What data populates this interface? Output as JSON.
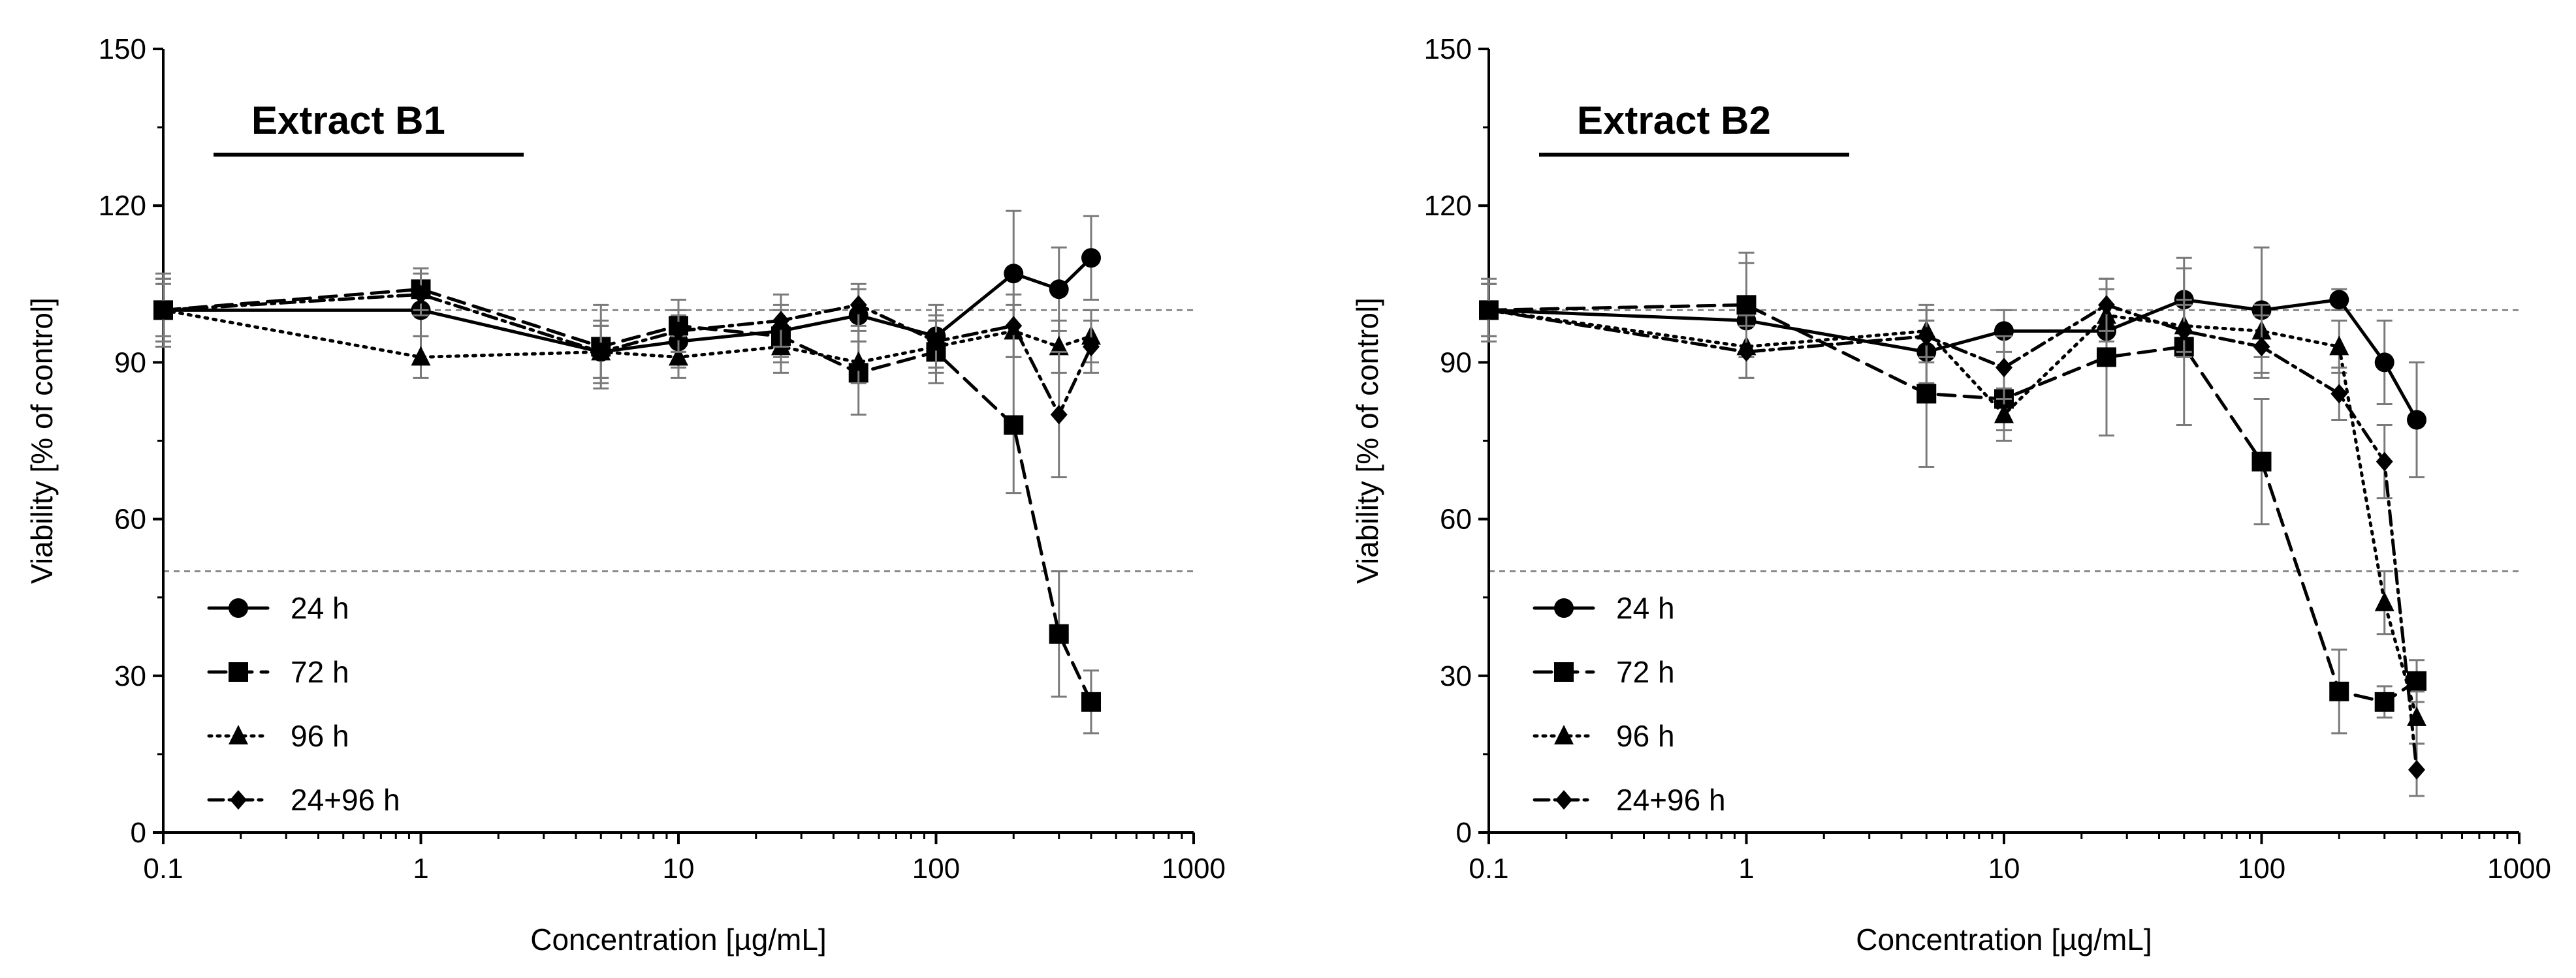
{
  "chart_data": [
    {
      "type": "line",
      "panel_id": "b1",
      "title": "Extract B1",
      "xlabel": "Concentration [µg/mL]",
      "ylabel": "Viability [% of control]",
      "xscale": "log",
      "xlim": [
        0.1,
        1000
      ],
      "ylim": [
        0,
        150
      ],
      "xticks": [
        0.1,
        1,
        10,
        100,
        1000
      ],
      "xtick_labels": [
        "0.1",
        "1",
        "10",
        "100",
        "1000"
      ],
      "yticks": [
        0,
        30,
        60,
        90,
        120,
        150
      ],
      "ytick_labels": [
        "0",
        "30",
        "60",
        "90",
        "120",
        "150"
      ],
      "reference_lines": [
        100,
        50
      ],
      "legend_position": "bottom-left",
      "series": [
        {
          "name": "24 h",
          "marker": "circle",
          "dash": "solid",
          "x": [
            0.1,
            1,
            5,
            10,
            25,
            50,
            100,
            200,
            300,
            400
          ],
          "y": [
            100,
            100,
            92,
            94,
            96,
            99,
            95,
            107,
            104,
            110
          ],
          "err": [
            6,
            5,
            6,
            5,
            5,
            5,
            6,
            12,
            8,
            8
          ]
        },
        {
          "name": "72 h",
          "marker": "square",
          "dash": "dashed",
          "x": [
            0.1,
            1,
            5,
            10,
            25,
            50,
            100,
            200,
            300,
            400
          ],
          "y": [
            100,
            104,
            93,
            97,
            95,
            88,
            92,
            78,
            38,
            25
          ],
          "err": [
            7,
            4,
            8,
            5,
            5,
            8,
            6,
            13,
            12,
            6
          ]
        },
        {
          "name": "96 h",
          "marker": "triangle",
          "dash": "dotted",
          "x": [
            0.1,
            1,
            5,
            10,
            25,
            50,
            100,
            200,
            300,
            400
          ],
          "y": [
            100,
            91,
            92,
            91,
            93,
            90,
            93,
            96,
            93,
            95
          ],
          "err": [
            5,
            4,
            5,
            4,
            5,
            4,
            5,
            5,
            5,
            5
          ]
        },
        {
          "name": "24+96 h",
          "marker": "diamond",
          "dash": "dashdot",
          "x": [
            0.1,
            1,
            5,
            10,
            25,
            50,
            100,
            200,
            300,
            400
          ],
          "y": [
            100,
            103,
            92,
            96,
            98,
            101,
            94,
            97,
            80,
            93
          ],
          "err": [
            6,
            4,
            5,
            4,
            5,
            4,
            5,
            6,
            12,
            5
          ]
        }
      ]
    },
    {
      "type": "line",
      "panel_id": "b2",
      "title": "Extract B2",
      "xlabel": "Concentration [µg/mL]",
      "ylabel": "Viability [% of control]",
      "xscale": "log",
      "xlim": [
        0.1,
        1000
      ],
      "ylim": [
        0,
        150
      ],
      "xticks": [
        0.1,
        1,
        10,
        100,
        1000
      ],
      "xtick_labels": [
        "0.1",
        "1",
        "10",
        "100",
        "1000"
      ],
      "yticks": [
        0,
        30,
        60,
        90,
        120,
        150
      ],
      "ytick_labels": [
        "0",
        "30",
        "60",
        "90",
        "120",
        "150"
      ],
      "reference_lines": [
        100,
        50
      ],
      "legend_position": "bottom-left",
      "series": [
        {
          "name": "24 h",
          "marker": "circle",
          "dash": "solid",
          "x": [
            0.1,
            1,
            5,
            10,
            25,
            50,
            100,
            200,
            300,
            400
          ],
          "y": [
            100,
            98,
            92,
            96,
            96,
            102,
            100,
            102,
            90,
            79
          ],
          "err": [
            5,
            11,
            6,
            4,
            5,
            8,
            12,
            2,
            8,
            11
          ]
        },
        {
          "name": "72 h",
          "marker": "square",
          "dash": "dashed",
          "x": [
            0.1,
            1,
            5,
            10,
            25,
            50,
            100,
            200,
            300,
            400
          ],
          "y": [
            100,
            101,
            84,
            83,
            91,
            93,
            71,
            27,
            25,
            29
          ],
          "err": [
            6,
            10,
            14,
            6,
            15,
            15,
            12,
            8,
            3,
            4
          ]
        },
        {
          "name": "96 h",
          "marker": "triangle",
          "dash": "dotted",
          "x": [
            0.1,
            1,
            5,
            10,
            25,
            50,
            100,
            200,
            300,
            400
          ],
          "y": [
            100,
            93,
            96,
            80,
            99,
            97,
            96,
            93,
            44,
            22
          ],
          "err": [
            5,
            6,
            5,
            5,
            5,
            5,
            5,
            5,
            6,
            5
          ]
        },
        {
          "name": "24+96 h",
          "marker": "diamond",
          "dash": "dashdot",
          "x": [
            0.1,
            1,
            5,
            10,
            25,
            50,
            100,
            200,
            300,
            400
          ],
          "y": [
            100,
            92,
            95,
            89,
            101,
            96,
            93,
            84,
            71,
            12
          ],
          "err": [
            5,
            5,
            5,
            6,
            5,
            5,
            6,
            5,
            7,
            5
          ]
        }
      ]
    }
  ]
}
